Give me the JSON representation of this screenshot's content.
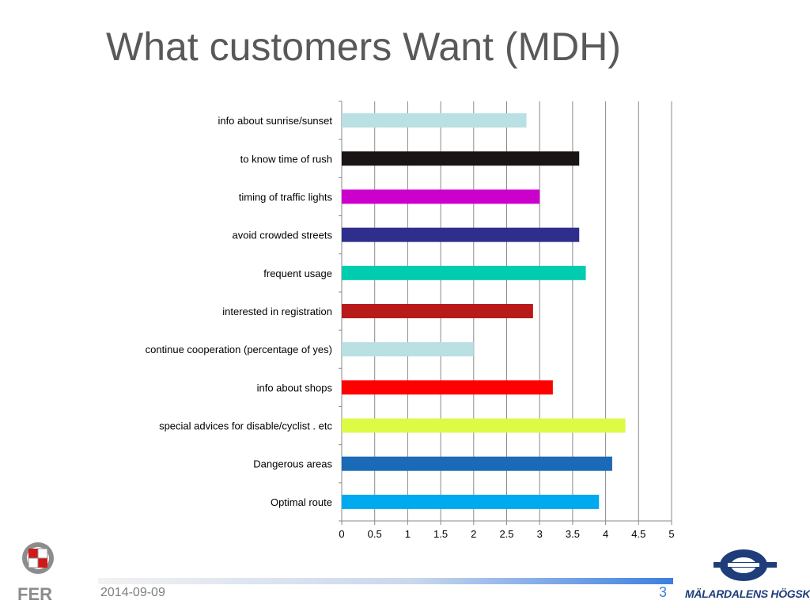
{
  "slide": {
    "title": "What customers Want (MDH)",
    "date": "2014-09-09",
    "page_number": "3",
    "footer_logo_text": "MÄLARDALENS HÖGSKOLA",
    "left_logo_text": "FER"
  },
  "chart_data": {
    "type": "bar",
    "orientation": "horizontal",
    "categories": [
      "info about sunrise/sunset",
      "to know time of rush",
      "timing of traffic lights",
      "avoid crowded streets",
      "frequent usage",
      "interested in registration",
      "continue cooperation (percentage of yes)",
      "info about shops",
      "special advices for disable/cyclist . etc",
      "Dangerous areas",
      "Optimal route"
    ],
    "values": [
      2.8,
      3.6,
      3.0,
      3.6,
      3.7,
      2.9,
      2.0,
      3.2,
      4.3,
      4.1,
      3.9
    ],
    "colors": [
      "#b9e0e3",
      "#1a1414",
      "#cc00cc",
      "#2e2e8c",
      "#00ccb0",
      "#b81a1a",
      "#b9e0e3",
      "#ff0000",
      "#ddfa44",
      "#1a6ab8",
      "#00aaee"
    ],
    "xlim": [
      0,
      5
    ],
    "xticks": [
      0,
      0.5,
      1,
      1.5,
      2,
      2.5,
      3,
      3.5,
      4,
      4.5,
      5
    ],
    "xtick_labels": [
      "0",
      "0.5",
      "1",
      "1.5",
      "2",
      "2.5",
      "3",
      "3.5",
      "4",
      "4.5",
      "5"
    ],
    "grid": true,
    "legend": "none",
    "title": "",
    "xlabel": "",
    "ylabel": ""
  }
}
